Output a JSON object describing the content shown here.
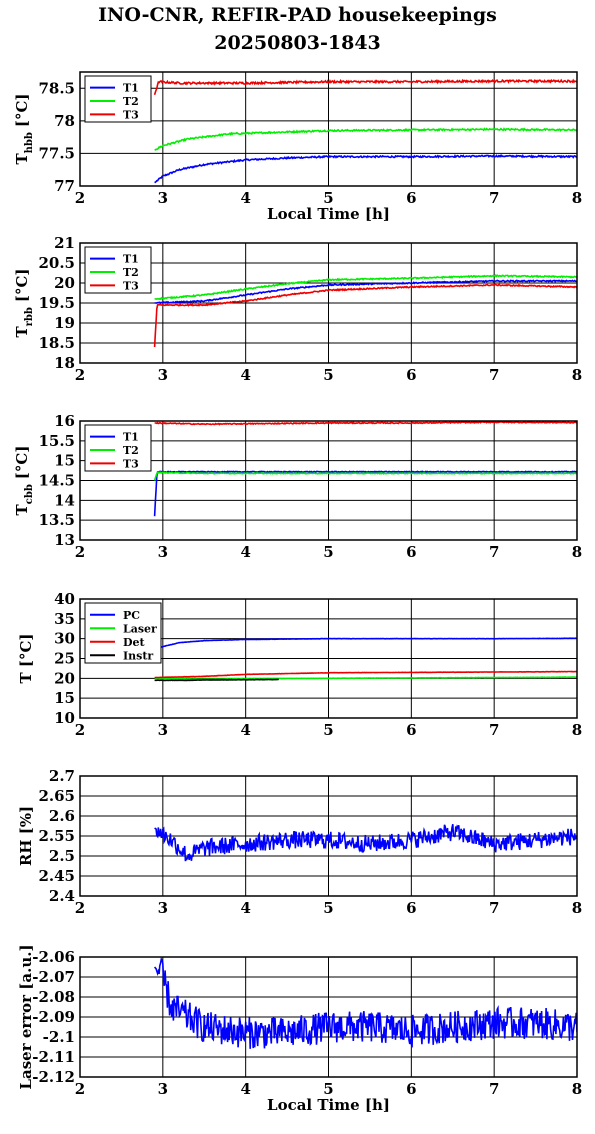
{
  "title_line1": "INO-CNR, REFIR-PAD housekeepings",
  "title_line2": "20250803-1843",
  "colors": {
    "blue": "#0000ff",
    "green": "#00ee00",
    "red": "#ee0000",
    "black": "#000000"
  },
  "chart_data": [
    {
      "type": "line",
      "ylabel_main": "T",
      "ylabel_sub": "hbb",
      "ylabel_unit": "[°C]",
      "xlabel": "Local Time [h]",
      "xlim": [
        2,
        8
      ],
      "ylim": [
        77,
        78.75
      ],
      "xticks": [
        2,
        3,
        4,
        5,
        6,
        7,
        8
      ],
      "xtick_labels": [
        "2",
        "3",
        "4",
        "5",
        "6",
        "7",
        "8"
      ],
      "yticks": [
        77,
        77.5,
        78,
        78.5
      ],
      "ytick_labels": [
        "77",
        "77.5",
        "78",
        "78.5"
      ],
      "grid": true,
      "legend": "top-left",
      "series": [
        {
          "name": "T1",
          "color": "#0000ff",
          "noise": 0.012,
          "points": [
            [
              2.9,
              77.05
            ],
            [
              3.0,
              77.15
            ],
            [
              3.2,
              77.25
            ],
            [
              3.5,
              77.33
            ],
            [
              4.0,
              77.4
            ],
            [
              4.5,
              77.43
            ],
            [
              5.0,
              77.45
            ],
            [
              6.0,
              77.45
            ],
            [
              7.0,
              77.46
            ],
            [
              8.0,
              77.45
            ]
          ]
        },
        {
          "name": "T2",
          "color": "#00ee00",
          "noise": 0.012,
          "points": [
            [
              2.9,
              77.55
            ],
            [
              3.0,
              77.62
            ],
            [
              3.3,
              77.72
            ],
            [
              3.8,
              77.8
            ],
            [
              4.5,
              77.83
            ],
            [
              5.0,
              77.85
            ],
            [
              6.0,
              77.86
            ],
            [
              7.0,
              77.87
            ],
            [
              8.0,
              77.86
            ]
          ]
        },
        {
          "name": "T3",
          "color": "#ee0000",
          "noise": 0.015,
          "points": [
            [
              2.9,
              78.4
            ],
            [
              2.95,
              78.6
            ],
            [
              3.2,
              78.58
            ],
            [
              4.0,
              78.58
            ],
            [
              5.0,
              78.6
            ],
            [
              6.0,
              78.6
            ],
            [
              7.0,
              78.61
            ],
            [
              8.0,
              78.61
            ]
          ]
        }
      ]
    },
    {
      "type": "line",
      "ylabel_main": "T",
      "ylabel_sub": "rbb",
      "ylabel_unit": "[°C]",
      "xlabel": "",
      "xlim": [
        2,
        8
      ],
      "ylim": [
        18,
        21
      ],
      "xticks": [
        2,
        3,
        4,
        5,
        6,
        7,
        8
      ],
      "xtick_labels": [
        "2",
        "3",
        "4",
        "5",
        "6",
        "7",
        "8"
      ],
      "yticks": [
        18,
        18.5,
        19,
        19.5,
        20,
        20.5,
        21
      ],
      "ytick_labels": [
        "18",
        "18.5",
        "19",
        "19.5",
        "20",
        "20.5",
        "21"
      ],
      "grid": true,
      "legend": "top-left",
      "series": [
        {
          "name": "T1",
          "color": "#0000ff",
          "noise": 0.015,
          "points": [
            [
              2.9,
              19.5
            ],
            [
              3.5,
              19.55
            ],
            [
              4.0,
              19.7
            ],
            [
              4.5,
              19.85
            ],
            [
              5.0,
              19.95
            ],
            [
              6.0,
              20.0
            ],
            [
              7.0,
              20.05
            ],
            [
              8.0,
              20.05
            ]
          ]
        },
        {
          "name": "T2",
          "color": "#00ee00",
          "noise": 0.015,
          "points": [
            [
              2.9,
              19.6
            ],
            [
              3.5,
              19.7
            ],
            [
              4.0,
              19.85
            ],
            [
              4.5,
              19.98
            ],
            [
              5.0,
              20.08
            ],
            [
              6.0,
              20.12
            ],
            [
              7.0,
              20.18
            ],
            [
              8.0,
              20.15
            ]
          ]
        },
        {
          "name": "T3",
          "color": "#ee0000",
          "noise": 0.015,
          "points": [
            [
              2.9,
              18.4
            ],
            [
              2.93,
              19.45
            ],
            [
              3.5,
              19.45
            ],
            [
              4.0,
              19.55
            ],
            [
              4.5,
              19.7
            ],
            [
              5.0,
              19.82
            ],
            [
              6.0,
              19.9
            ],
            [
              7.0,
              19.95
            ],
            [
              8.0,
              19.9
            ]
          ]
        }
      ]
    },
    {
      "type": "line",
      "ylabel_main": "T",
      "ylabel_sub": "cbb",
      "ylabel_unit": "[°C]",
      "xlabel": "",
      "xlim": [
        2,
        8
      ],
      "ylim": [
        13,
        16
      ],
      "xticks": [
        2,
        3,
        4,
        5,
        6,
        7,
        8
      ],
      "xtick_labels": [
        "2",
        "3",
        "4",
        "5",
        "6",
        "7",
        "8"
      ],
      "yticks": [
        13,
        13.5,
        14,
        14.5,
        15,
        15.5,
        16
      ],
      "ytick_labels": [
        "13",
        "13.5",
        "14",
        "14.5",
        "15",
        "15.5",
        "16"
      ],
      "grid": true,
      "legend": "top-left",
      "series": [
        {
          "name": "T1",
          "color": "#0000ff",
          "noise": 0.01,
          "points": [
            [
              2.9,
              13.6
            ],
            [
              2.93,
              14.72
            ],
            [
              3.5,
              14.72
            ],
            [
              5.0,
              14.72
            ],
            [
              6.0,
              14.72
            ],
            [
              7.0,
              14.72
            ],
            [
              8.0,
              14.72
            ]
          ]
        },
        {
          "name": "T2",
          "color": "#00ee00",
          "noise": 0.01,
          "points": [
            [
              2.9,
              14.5
            ],
            [
              2.93,
              14.7
            ],
            [
              3.5,
              14.68
            ],
            [
              5.0,
              14.68
            ],
            [
              6.0,
              14.68
            ],
            [
              7.0,
              14.68
            ],
            [
              8.0,
              14.68
            ]
          ]
        },
        {
          "name": "T3",
          "color": "#ee0000",
          "noise": 0.012,
          "points": [
            [
              2.9,
              15.95
            ],
            [
              3.5,
              15.92
            ],
            [
              4.0,
              15.93
            ],
            [
              5.0,
              15.95
            ],
            [
              6.0,
              15.95
            ],
            [
              7.0,
              15.97
            ],
            [
              8.0,
              15.96
            ]
          ]
        }
      ]
    },
    {
      "type": "line",
      "ylabel_main": "T [°C]",
      "ylabel_sub": "",
      "ylabel_unit": "",
      "xlabel": "",
      "xlim": [
        2,
        8
      ],
      "ylim": [
        10,
        40
      ],
      "xticks": [
        2,
        3,
        4,
        5,
        6,
        7,
        8
      ],
      "xtick_labels": [
        "2",
        "3",
        "4",
        "5",
        "6",
        "7",
        "8"
      ],
      "yticks": [
        10,
        15,
        20,
        25,
        30,
        35,
        40
      ],
      "ytick_labels": [
        "10",
        "15",
        "20",
        "25",
        "30",
        "35",
        "40"
      ],
      "grid": true,
      "legend": "top-left",
      "series": [
        {
          "name": "PC",
          "color": "#0000ff",
          "noise": 0.03,
          "points": [
            [
              2.9,
              27.5
            ],
            [
              3.2,
              29.0
            ],
            [
              3.5,
              29.5
            ],
            [
              4.0,
              29.8
            ],
            [
              5.0,
              30.0
            ],
            [
              6.0,
              30.0
            ],
            [
              7.0,
              30.0
            ],
            [
              8.0,
              30.1
            ]
          ]
        },
        {
          "name": "Laser",
          "color": "#00ee00",
          "noise": 0.03,
          "points": [
            [
              2.9,
              20.0
            ],
            [
              3.5,
              19.8
            ],
            [
              4.0,
              19.9
            ],
            [
              5.0,
              20.0
            ],
            [
              6.0,
              20.1
            ],
            [
              7.0,
              20.2
            ],
            [
              8.0,
              20.3
            ]
          ]
        },
        {
          "name": "Det",
          "color": "#ee0000",
          "noise": 0.03,
          "points": [
            [
              2.9,
              20.2
            ],
            [
              3.5,
              20.5
            ],
            [
              4.0,
              21.0
            ],
            [
              5.0,
              21.4
            ],
            [
              6.0,
              21.5
            ],
            [
              7.0,
              21.6
            ],
            [
              8.0,
              21.7
            ]
          ]
        },
        {
          "name": "Instr",
          "color": "#000000",
          "noise": 0.03,
          "points": [
            [
              2.9,
              19.5
            ],
            [
              3.3,
              19.5
            ],
            [
              3.5,
              19.6
            ],
            [
              4.4,
              19.7
            ]
          ]
        }
      ]
    },
    {
      "type": "line",
      "ylabel_main": "RH [%]",
      "ylabel_sub": "",
      "ylabel_unit": "",
      "xlabel": "",
      "xlim": [
        2,
        8
      ],
      "ylim": [
        2.4,
        2.7
      ],
      "xticks": [
        2,
        3,
        4,
        5,
        6,
        7,
        8
      ],
      "xtick_labels": [
        "2",
        "3",
        "4",
        "5",
        "6",
        "7",
        "8"
      ],
      "yticks": [
        2.4,
        2.45,
        2.5,
        2.55,
        2.6,
        2.65,
        2.7
      ],
      "ytick_labels": [
        "2.4",
        "2.45",
        "2.5",
        "2.55",
        "2.6",
        "2.65",
        "2.7"
      ],
      "grid": true,
      "legend": "",
      "series": [
        {
          "name": "",
          "color": "#0000ff",
          "noise": 0.022,
          "points": [
            [
              2.9,
              2.57
            ],
            [
              3.1,
              2.54
            ],
            [
              3.3,
              2.5
            ],
            [
              3.5,
              2.52
            ],
            [
              4.0,
              2.53
            ],
            [
              4.5,
              2.54
            ],
            [
              5.0,
              2.54
            ],
            [
              5.5,
              2.53
            ],
            [
              6.0,
              2.54
            ],
            [
              6.5,
              2.56
            ],
            [
              7.0,
              2.53
            ],
            [
              7.5,
              2.54
            ],
            [
              8.0,
              2.55
            ]
          ]
        }
      ]
    },
    {
      "type": "line",
      "ylabel_main": "Laser error [a.u.]",
      "ylabel_sub": "",
      "ylabel_unit": "",
      "xlabel": "Local Time [h]",
      "xlim": [
        2,
        8
      ],
      "ylim": [
        -2.12,
        -2.06
      ],
      "xticks": [
        2,
        3,
        4,
        5,
        6,
        7,
        8
      ],
      "xtick_labels": [
        "2",
        "3",
        "4",
        "5",
        "6",
        "7",
        "8"
      ],
      "yticks": [
        -2.12,
        -2.11,
        -2.1,
        -2.09,
        -2.08,
        -2.07,
        -2.06
      ],
      "ytick_labels": [
        "-2.12",
        "-2.11",
        "-2.1",
        "-2.09",
        "-2.08",
        "-2.07",
        "-2.06"
      ],
      "grid": true,
      "legend": "",
      "series": [
        {
          "name": "",
          "color": "#0000ff",
          "noise": 0.008,
          "points": [
            [
              2.9,
              -2.065
            ],
            [
              3.0,
              -2.07
            ],
            [
              3.1,
              -2.085
            ],
            [
              3.5,
              -2.095
            ],
            [
              4.0,
              -2.098
            ],
            [
              4.5,
              -2.098
            ],
            [
              5.0,
              -2.095
            ],
            [
              5.5,
              -2.095
            ],
            [
              6.0,
              -2.097
            ],
            [
              6.5,
              -2.095
            ],
            [
              7.0,
              -2.093
            ],
            [
              7.5,
              -2.093
            ],
            [
              8.0,
              -2.095
            ]
          ]
        }
      ]
    }
  ]
}
